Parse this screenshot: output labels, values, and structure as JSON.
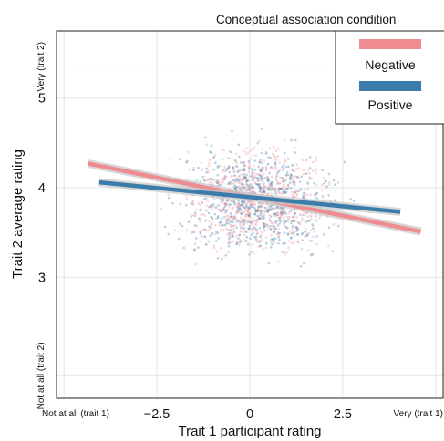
{
  "chart_data": {
    "type": "scatter",
    "title": "",
    "xlabel": "Trait 1 participant rating",
    "ylabel": "Trait 2 average rating",
    "xlim": [
      -5.2,
      5.2
    ],
    "ylim": [
      1.65,
      5.75
    ],
    "x_ticks": [
      {
        "value": -5,
        "label": "Not at all (trait 1)",
        "size": "small"
      },
      {
        "value": -2.5,
        "label": "−2.5",
        "size": "normal"
      },
      {
        "value": 0,
        "label": "0",
        "size": "normal"
      },
      {
        "value": 2.5,
        "label": "2.5",
        "size": "normal"
      },
      {
        "value": 5,
        "label": "Very (trait 1)",
        "size": "small"
      }
    ],
    "y_ticks": [
      {
        "value": 1.9,
        "label": "Not at all (trait 2)",
        "size": "small"
      },
      {
        "value": 3,
        "label": "3",
        "size": "normal"
      },
      {
        "value": 4,
        "label": "4",
        "size": "normal"
      },
      {
        "value": 5,
        "label": "5",
        "size": "normal"
      },
      {
        "value": 5.35,
        "label": "Very (trait 2)",
        "size": "small"
      }
    ],
    "grid": true,
    "legend": {
      "title": "Conceptual association condition",
      "placement": "top-right"
    },
    "series": [
      {
        "name": "Negative",
        "color": "#ee8c91",
        "fit": {
          "x": [
            -4.35,
            4.6
          ],
          "y": [
            4.27,
            3.51
          ]
        }
      },
      {
        "name": "Positive",
        "color": "#3b7cab",
        "fit": {
          "x": [
            -4.05,
            4.05
          ],
          "y": [
            4.06,
            3.73
          ]
        }
      }
    ],
    "point_cloud": {
      "note_values": "individual rating points, dense band between x -3 and 4, y 2.5 to 5.2"
    }
  }
}
